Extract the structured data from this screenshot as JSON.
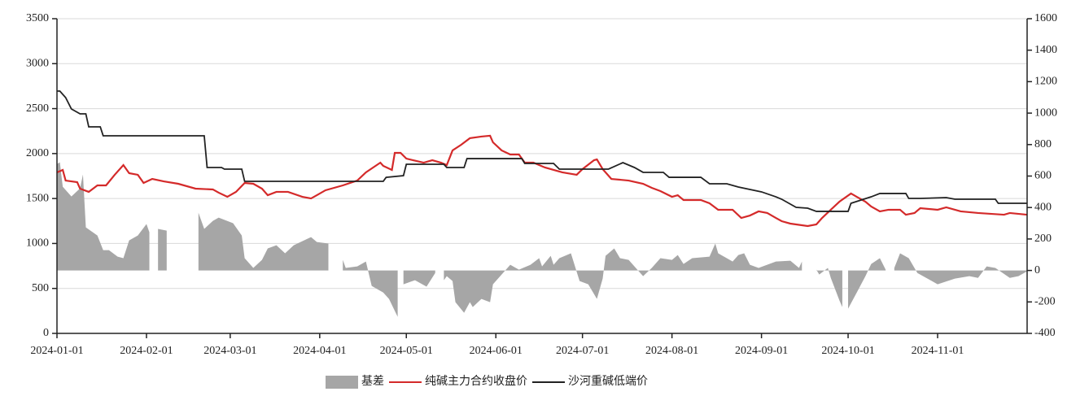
{
  "chart_data": {
    "type": "line",
    "xlim": [
      "2024-01-01",
      "2024-12-02"
    ],
    "xticks": [
      "2024-01-01",
      "2024-02-01",
      "2024-03-01",
      "2024-04-01",
      "2024-05-01",
      "2024-06-01",
      "2024-07-01",
      "2024-08-01",
      "2024-09-01",
      "2024-10-01",
      "2024-11-01"
    ],
    "ylim": [
      0,
      3500
    ],
    "yticks": [
      0,
      500,
      1000,
      1500,
      2000,
      2500,
      3000,
      3500
    ],
    "y2lim": [
      -400,
      1600
    ],
    "y2ticks": [
      -400,
      -200,
      0,
      200,
      400,
      600,
      800,
      1000,
      1200,
      1400,
      1600
    ],
    "grid": true,
    "legend": "bottom",
    "series": [
      {
        "name": "基差",
        "kind": "area",
        "axis": "y2",
        "color": "#a6a6a6",
        "x": [
          "2024-01-01",
          "2024-01-02",
          "2024-01-03",
          "2024-01-06",
          "2024-01-09",
          "2024-01-10",
          "2024-01-11",
          "2024-01-15",
          "2024-01-17",
          "2024-01-19",
          "2024-01-22",
          "2024-01-24",
          "2024-01-26",
          "2024-01-29",
          "2024-02-01",
          "2024-02-02",
          "2024-02-04",
          "2024-02-05",
          "2024-02-08",
          "2024-02-14",
          "2024-02-19",
          "2024-02-21",
          "2024-02-24",
          "2024-02-26",
          "2024-03-02",
          "2024-03-05",
          "2024-03-06",
          "2024-03-09",
          "2024-03-12",
          "2024-03-14",
          "2024-03-17",
          "2024-03-20",
          "2024-03-23",
          "2024-03-29",
          "2024-03-31",
          "2024-04-04",
          "2024-04-07",
          "2024-04-09",
          "2024-04-10",
          "2024-04-14",
          "2024-04-17",
          "2024-04-19",
          "2024-04-23",
          "2024-04-25",
          "2024-04-28",
          "2024-04-29",
          "2024-04-30",
          "2024-05-04",
          "2024-05-08",
          "2024-05-11",
          "2024-05-13",
          "2024-05-14",
          "2024-05-15",
          "2024-05-17",
          "2024-05-18",
          "2024-05-21",
          "2024-05-23",
          "2024-05-24",
          "2024-05-27",
          "2024-05-30",
          "2024-05-31",
          "2024-06-04",
          "2024-06-06",
          "2024-06-09",
          "2024-06-13",
          "2024-06-16",
          "2024-06-17",
          "2024-06-20",
          "2024-06-21",
          "2024-06-23",
          "2024-06-27",
          "2024-06-30",
          "2024-07-03",
          "2024-07-06",
          "2024-07-08",
          "2024-07-09",
          "2024-07-12",
          "2024-07-14",
          "2024-07-17",
          "2024-07-22",
          "2024-07-25",
          "2024-07-28",
          "2024-08-01",
          "2024-08-03",
          "2024-08-05",
          "2024-08-08",
          "2024-08-14",
          "2024-08-16",
          "2024-08-17",
          "2024-08-22",
          "2024-08-24",
          "2024-08-26",
          "2024-08-28",
          "2024-08-31",
          "2024-09-06",
          "2024-09-11",
          "2024-09-14",
          "2024-09-15",
          "2024-09-18",
          "2024-09-20",
          "2024-09-21",
          "2024-09-24",
          "2024-09-25",
          "2024-09-28",
          "2024-09-29",
          "2024-09-30",
          "2024-10-01",
          "2024-10-04",
          "2024-10-07",
          "2024-10-09",
          "2024-10-12",
          "2024-10-14",
          "2024-10-16",
          "2024-10-17",
          "2024-10-19",
          "2024-10-22",
          "2024-10-25",
          "2024-10-29",
          "2024-11-01",
          "2024-11-07",
          "2024-11-12",
          "2024-11-15",
          "2024-11-18",
          "2024-11-21",
          "2024-11-26",
          "2024-11-29",
          "2024-12-02"
        ],
        "values": [
          677,
          687,
          532,
          470,
          522,
          610,
          274,
          222,
          129,
          129,
          88,
          78,
          191,
          222,
          295,
          243,
          null,
          264,
          253,
          null,
          367,
          264,
          315,
          336,
          300,
          222,
          78,
          16,
          67,
          140,
          160,
          109,
          160,
          212,
          181,
          171,
          null,
          67,
          16,
          26,
          57,
          -98,
          -140,
          -181,
          -295,
          null,
          -88,
          -62,
          -103,
          -16,
          null,
          -62,
          -36,
          -67,
          -202,
          -269,
          -202,
          -233,
          -181,
          -202,
          -88,
          -5,
          36,
          5,
          36,
          78,
          26,
          93,
          36,
          78,
          109,
          -67,
          -88,
          -181,
          -52,
          93,
          140,
          78,
          67,
          -36,
          16,
          78,
          67,
          98,
          41,
          78,
          88,
          171,
          109,
          57,
          98,
          109,
          36,
          16,
          57,
          62,
          16,
          57,
          null,
          5,
          -26,
          16,
          -47,
          -191,
          -233,
          null,
          -243,
          -140,
          -36,
          41,
          78,
          5,
          null,
          16,
          109,
          78,
          -16,
          -57,
          -88,
          -52,
          -36,
          -47,
          26,
          16,
          -47,
          -36,
          -5
        ]
      },
      {
        "name": "纯碱主力合约收盘价",
        "kind": "line",
        "color": "#d42a2a",
        "x": [
          "2024-01-01",
          "2024-01-03",
          "2024-01-04",
          "2024-01-08",
          "2024-01-09",
          "2024-01-12",
          "2024-01-15",
          "2024-01-18",
          "2024-01-21",
          "2024-01-24",
          "2024-01-26",
          "2024-01-29",
          "2024-01-31",
          "2024-02-03",
          "2024-02-07",
          "2024-02-12",
          "2024-02-18",
          "2024-02-24",
          "2024-02-26",
          "2024-02-29",
          "2024-03-03",
          "2024-03-06",
          "2024-03-09",
          "2024-03-12",
          "2024-03-14",
          "2024-03-17",
          "2024-03-21",
          "2024-03-26",
          "2024-03-29",
          "2024-03-31",
          "2024-04-03",
          "2024-04-09",
          "2024-04-14",
          "2024-04-17",
          "2024-04-22",
          "2024-04-23",
          "2024-04-26",
          "2024-04-27",
          "2024-04-29",
          "2024-05-01",
          "2024-05-07",
          "2024-05-10",
          "2024-05-13",
          "2024-05-15",
          "2024-05-17",
          "2024-05-20",
          "2024-05-23",
          "2024-05-27",
          "2024-05-30",
          "2024-05-31",
          "2024-06-03",
          "2024-06-06",
          "2024-06-09",
          "2024-06-11",
          "2024-06-14",
          "2024-06-18",
          "2024-06-24",
          "2024-06-29",
          "2024-07-01",
          "2024-07-05",
          "2024-07-06",
          "2024-07-08",
          "2024-07-11",
          "2024-07-17",
          "2024-07-22",
          "2024-07-25",
          "2024-07-28",
          "2024-08-01",
          "2024-08-03",
          "2024-08-05",
          "2024-08-11",
          "2024-08-14",
          "2024-08-17",
          "2024-08-22",
          "2024-08-25",
          "2024-08-28",
          "2024-08-31",
          "2024-09-03",
          "2024-09-06",
          "2024-09-08",
          "2024-09-11",
          "2024-09-17",
          "2024-09-20",
          "2024-09-22",
          "2024-09-25",
          "2024-09-28",
          "2024-10-02",
          "2024-10-04",
          "2024-10-07",
          "2024-10-09",
          "2024-10-12",
          "2024-10-15",
          "2024-10-19",
          "2024-10-21",
          "2024-10-24",
          "2024-10-26",
          "2024-11-01",
          "2024-11-04",
          "2024-11-09",
          "2024-11-15",
          "2024-11-24",
          "2024-11-26",
          "2024-12-02"
        ],
        "values": [
          1791,
          1818,
          1700,
          1682,
          1610,
          1574,
          1646,
          1646,
          1764,
          1872,
          1782,
          1764,
          1673,
          1718,
          1691,
          1664,
          1610,
          1601,
          1565,
          1519,
          1574,
          1673,
          1664,
          1610,
          1537,
          1574,
          1574,
          1519,
          1501,
          1537,
          1592,
          1646,
          1700,
          1791,
          1899,
          1863,
          1818,
          2008,
          2008,
          1944,
          1899,
          1926,
          1899,
          1872,
          2035,
          2098,
          2171,
          2189,
          2198,
          2125,
          2035,
          1990,
          1990,
          1899,
          1899,
          1845,
          1791,
          1764,
          1827,
          1926,
          1935,
          1827,
          1718,
          1700,
          1664,
          1619,
          1583,
          1519,
          1537,
          1483,
          1483,
          1447,
          1375,
          1375,
          1284,
          1311,
          1357,
          1339,
          1284,
          1248,
          1221,
          1194,
          1212,
          1284,
          1375,
          1465,
          1556,
          1519,
          1465,
          1411,
          1357,
          1375,
          1375,
          1320,
          1339,
          1393,
          1375,
          1402,
          1357,
          1339,
          1320,
          1339,
          1320
        ]
      },
      {
        "name": "沙河重碱低端价",
        "kind": "line",
        "color": "#222222",
        "x": [
          "2024-01-01",
          "2024-01-02",
          "2024-01-04",
          "2024-01-06",
          "2024-01-09",
          "2024-01-11",
          "2024-01-12",
          "2024-01-16",
          "2024-01-17",
          "2024-02-21",
          "2024-02-22",
          "2024-02-27",
          "2024-02-28",
          "2024-03-05",
          "2024-03-06",
          "2024-04-23",
          "2024-04-24",
          "2024-04-30",
          "2024-05-01",
          "2024-05-14",
          "2024-05-15",
          "2024-05-21",
          "2024-05-22",
          "2024-06-10",
          "2024-06-11",
          "2024-06-21",
          "2024-06-23",
          "2024-07-10",
          "2024-07-15",
          "2024-07-19",
          "2024-07-22",
          "2024-07-29",
          "2024-07-31",
          "2024-08-11",
          "2024-08-14",
          "2024-08-20",
          "2024-08-24",
          "2024-09-01",
          "2024-09-06",
          "2024-09-08",
          "2024-09-13",
          "2024-09-17",
          "2024-09-20",
          "2024-10-01",
          "2024-10-02",
          "2024-10-09",
          "2024-10-12",
          "2024-10-21",
          "2024-10-22",
          "2024-10-26",
          "2024-11-04",
          "2024-11-07",
          "2024-11-21",
          "2024-11-22",
          "2024-12-02"
        ],
        "values": [
          2695,
          2695,
          2623,
          2496,
          2442,
          2442,
          2297,
          2297,
          2198,
          2198,
          1845,
          1845,
          1827,
          1827,
          1691,
          1691,
          1736,
          1754,
          1881,
          1881,
          1845,
          1845,
          1944,
          1944,
          1890,
          1890,
          1827,
          1827,
          1899,
          1845,
          1791,
          1791,
          1736,
          1736,
          1664,
          1664,
          1628,
          1574,
          1519,
          1492,
          1402,
          1393,
          1357,
          1357,
          1447,
          1519,
          1556,
          1556,
          1501,
          1501,
          1510,
          1492,
          1492,
          1447,
          1447
        ]
      }
    ]
  }
}
